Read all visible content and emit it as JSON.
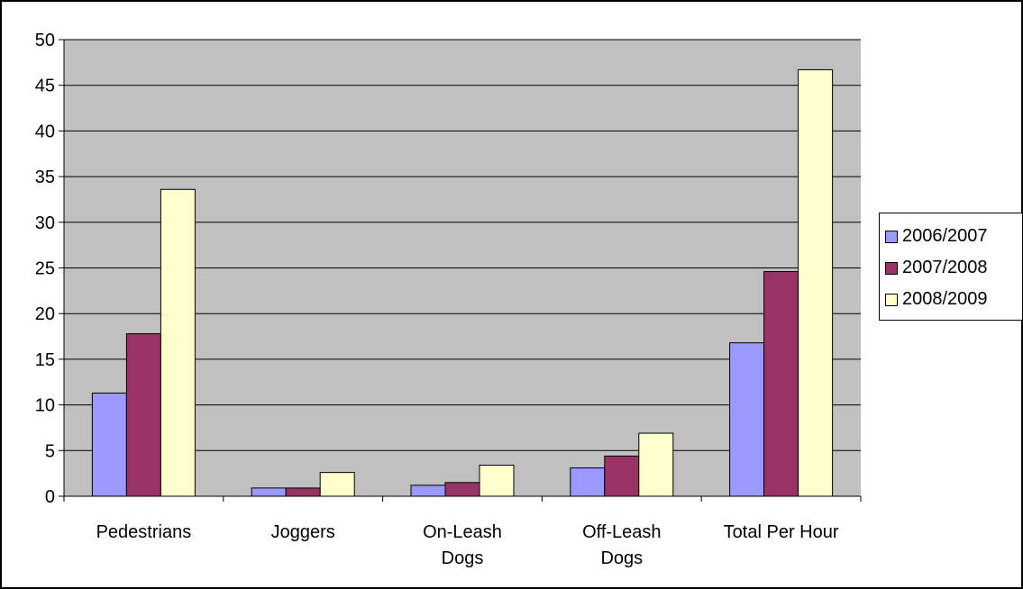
{
  "chart_data": {
    "type": "bar",
    "title": "",
    "xlabel": "",
    "ylabel": "",
    "categories": [
      [
        "Pedestrians"
      ],
      [
        "Joggers"
      ],
      [
        "On-Leash",
        "Dogs"
      ],
      [
        "Off-Leash",
        "Dogs"
      ],
      [
        "Total Per Hour"
      ]
    ],
    "series": [
      {
        "name": "2006/2007",
        "color": "#9999ff",
        "values": [
          11.3,
          0.9,
          1.2,
          3.1,
          16.8
        ]
      },
      {
        "name": "2007/2008",
        "color": "#993366",
        "values": [
          17.8,
          0.9,
          1.5,
          4.4,
          24.6
        ]
      },
      {
        "name": "2008/2009",
        "color": "#ffffcc",
        "values": [
          33.6,
          2.6,
          3.4,
          6.9,
          46.7
        ]
      }
    ],
    "ylim": [
      0,
      50
    ],
    "yticks": [
      "0",
      "5",
      "10",
      "15",
      "20",
      "25",
      "30",
      "35",
      "40",
      "45",
      "50"
    ],
    "grid": true,
    "plot_background": "#c0c0c0",
    "legend_position": "right"
  }
}
